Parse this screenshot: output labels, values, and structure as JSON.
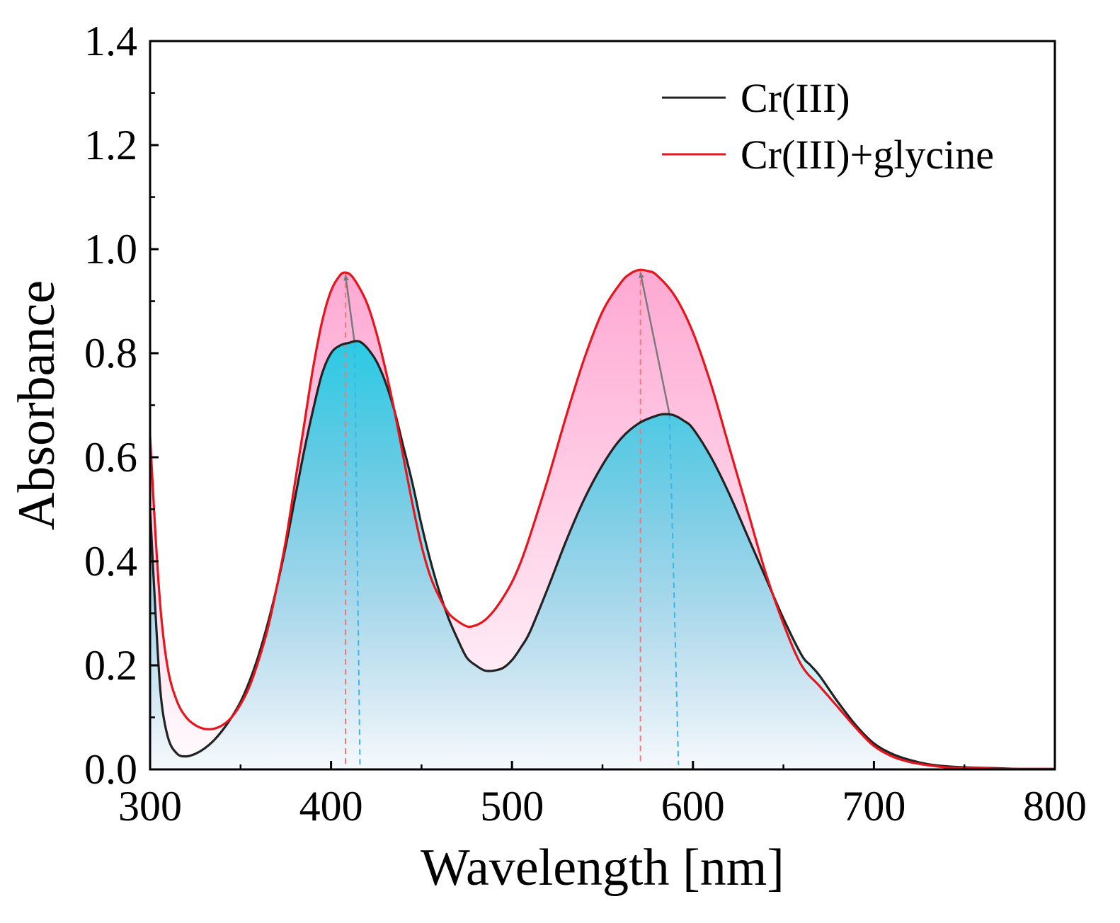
{
  "chart_data": {
    "type": "line",
    "title": "",
    "xlabel": "Wavelength [nm]",
    "ylabel": "Absorbance",
    "xlim": [
      300,
      800
    ],
    "ylim": [
      0.0,
      1.4
    ],
    "xticks": [
      300,
      400,
      500,
      600,
      700,
      800
    ],
    "xtick_labels": [
      "300",
      "400",
      "500",
      "600",
      "700",
      "800"
    ],
    "yticks": [
      0.0,
      0.2,
      0.4,
      0.6,
      0.8,
      1.0,
      1.2,
      1.4
    ],
    "ytick_labels": [
      "0.0",
      "0.2",
      "0.4",
      "0.6",
      "0.8",
      "1.0",
      "1.2",
      "1.4"
    ],
    "legend_position": "top-right",
    "series": [
      {
        "name": "Cr(III)",
        "color": "#222222",
        "fill_color": "#2ccde6",
        "x": [
          300,
          303,
          306,
          310,
          315,
          320,
          325,
          330,
          335,
          340,
          345,
          350,
          355,
          360,
          365,
          370,
          375,
          380,
          385,
          390,
          395,
          400,
          405,
          410,
          413,
          416,
          420,
          425,
          430,
          435,
          440,
          445,
          450,
          455,
          460,
          465,
          470,
          475,
          480,
          485,
          490,
          495,
          500,
          505,
          510,
          520,
          530,
          540,
          550,
          560,
          570,
          580,
          585,
          590,
          595,
          600,
          610,
          620,
          630,
          640,
          650,
          660,
          665,
          670,
          680,
          690,
          700,
          710,
          720,
          730,
          740,
          750,
          760,
          770,
          780,
          800
        ],
        "y": [
          0.5,
          0.3,
          0.14,
          0.06,
          0.03,
          0.025,
          0.03,
          0.04,
          0.055,
          0.075,
          0.1,
          0.13,
          0.17,
          0.22,
          0.28,
          0.35,
          0.43,
          0.52,
          0.61,
          0.69,
          0.76,
          0.8,
          0.815,
          0.82,
          0.823,
          0.822,
          0.81,
          0.785,
          0.745,
          0.69,
          0.62,
          0.55,
          0.47,
          0.4,
          0.34,
          0.29,
          0.25,
          0.215,
          0.2,
          0.19,
          0.19,
          0.195,
          0.21,
          0.235,
          0.265,
          0.35,
          0.44,
          0.52,
          0.585,
          0.635,
          0.665,
          0.68,
          0.683,
          0.68,
          0.67,
          0.655,
          0.6,
          0.53,
          0.45,
          0.37,
          0.29,
          0.22,
          0.2,
          0.18,
          0.13,
          0.085,
          0.05,
          0.03,
          0.018,
          0.01,
          0.006,
          0.004,
          0.003,
          0.002,
          0.001,
          0.001
        ]
      },
      {
        "name": "Cr(III)+glycine",
        "color": "#e8141c",
        "fill_color": "#ff9ccc",
        "x": [
          300,
          303,
          306,
          310,
          315,
          320,
          325,
          330,
          335,
          340,
          345,
          350,
          355,
          360,
          365,
          370,
          375,
          380,
          385,
          390,
          395,
          400,
          405,
          408,
          411,
          415,
          420,
          425,
          430,
          435,
          440,
          445,
          450,
          455,
          460,
          465,
          470,
          475,
          478,
          482,
          486,
          490,
          495,
          500,
          505,
          510,
          520,
          530,
          540,
          550,
          560,
          565,
          570,
          575,
          580,
          590,
          600,
          610,
          620,
          630,
          640,
          650,
          660,
          670,
          680,
          690,
          700,
          710,
          720,
          730,
          740,
          750,
          760,
          770,
          780,
          800
        ],
        "y": [
          0.64,
          0.45,
          0.3,
          0.19,
          0.13,
          0.1,
          0.085,
          0.078,
          0.078,
          0.085,
          0.1,
          0.125,
          0.16,
          0.21,
          0.27,
          0.35,
          0.44,
          0.55,
          0.66,
          0.77,
          0.86,
          0.92,
          0.95,
          0.955,
          0.95,
          0.93,
          0.895,
          0.84,
          0.77,
          0.69,
          0.6,
          0.51,
          0.43,
          0.37,
          0.33,
          0.3,
          0.285,
          0.275,
          0.275,
          0.28,
          0.29,
          0.305,
          0.33,
          0.36,
          0.4,
          0.45,
          0.56,
          0.68,
          0.79,
          0.88,
          0.935,
          0.952,
          0.96,
          0.958,
          0.95,
          0.91,
          0.84,
          0.74,
          0.62,
          0.5,
          0.38,
          0.28,
          0.2,
          0.16,
          0.12,
          0.08,
          0.045,
          0.025,
          0.014,
          0.008,
          0.004,
          0.003,
          0.002,
          0.001,
          0.001,
          0.001
        ]
      }
    ],
    "annotations": [
      {
        "type": "shift_arrow",
        "from": [
          413,
          0.82
        ],
        "to": [
          408,
          0.955
        ],
        "color": "#7a7a7a"
      },
      {
        "type": "shift_arrow",
        "from": [
          587,
          0.683
        ],
        "to": [
          571,
          0.96
        ],
        "color": "#7a7a7a"
      },
      {
        "type": "dashed_marker",
        "x_top": 408,
        "x_bottom": 408,
        "y_top": 0.955,
        "color": "#f07878"
      },
      {
        "type": "dashed_marker",
        "x_top": 413,
        "x_bottom": 416,
        "y_top": 0.82,
        "color": "#3bb5e8"
      },
      {
        "type": "dashed_marker",
        "x_top": 571,
        "x_bottom": 571,
        "y_top": 0.96,
        "color": "#f07878"
      },
      {
        "type": "dashed_marker",
        "x_top": 587,
        "x_bottom": 592,
        "y_top": 0.683,
        "color": "#3bb5e8"
      }
    ]
  }
}
